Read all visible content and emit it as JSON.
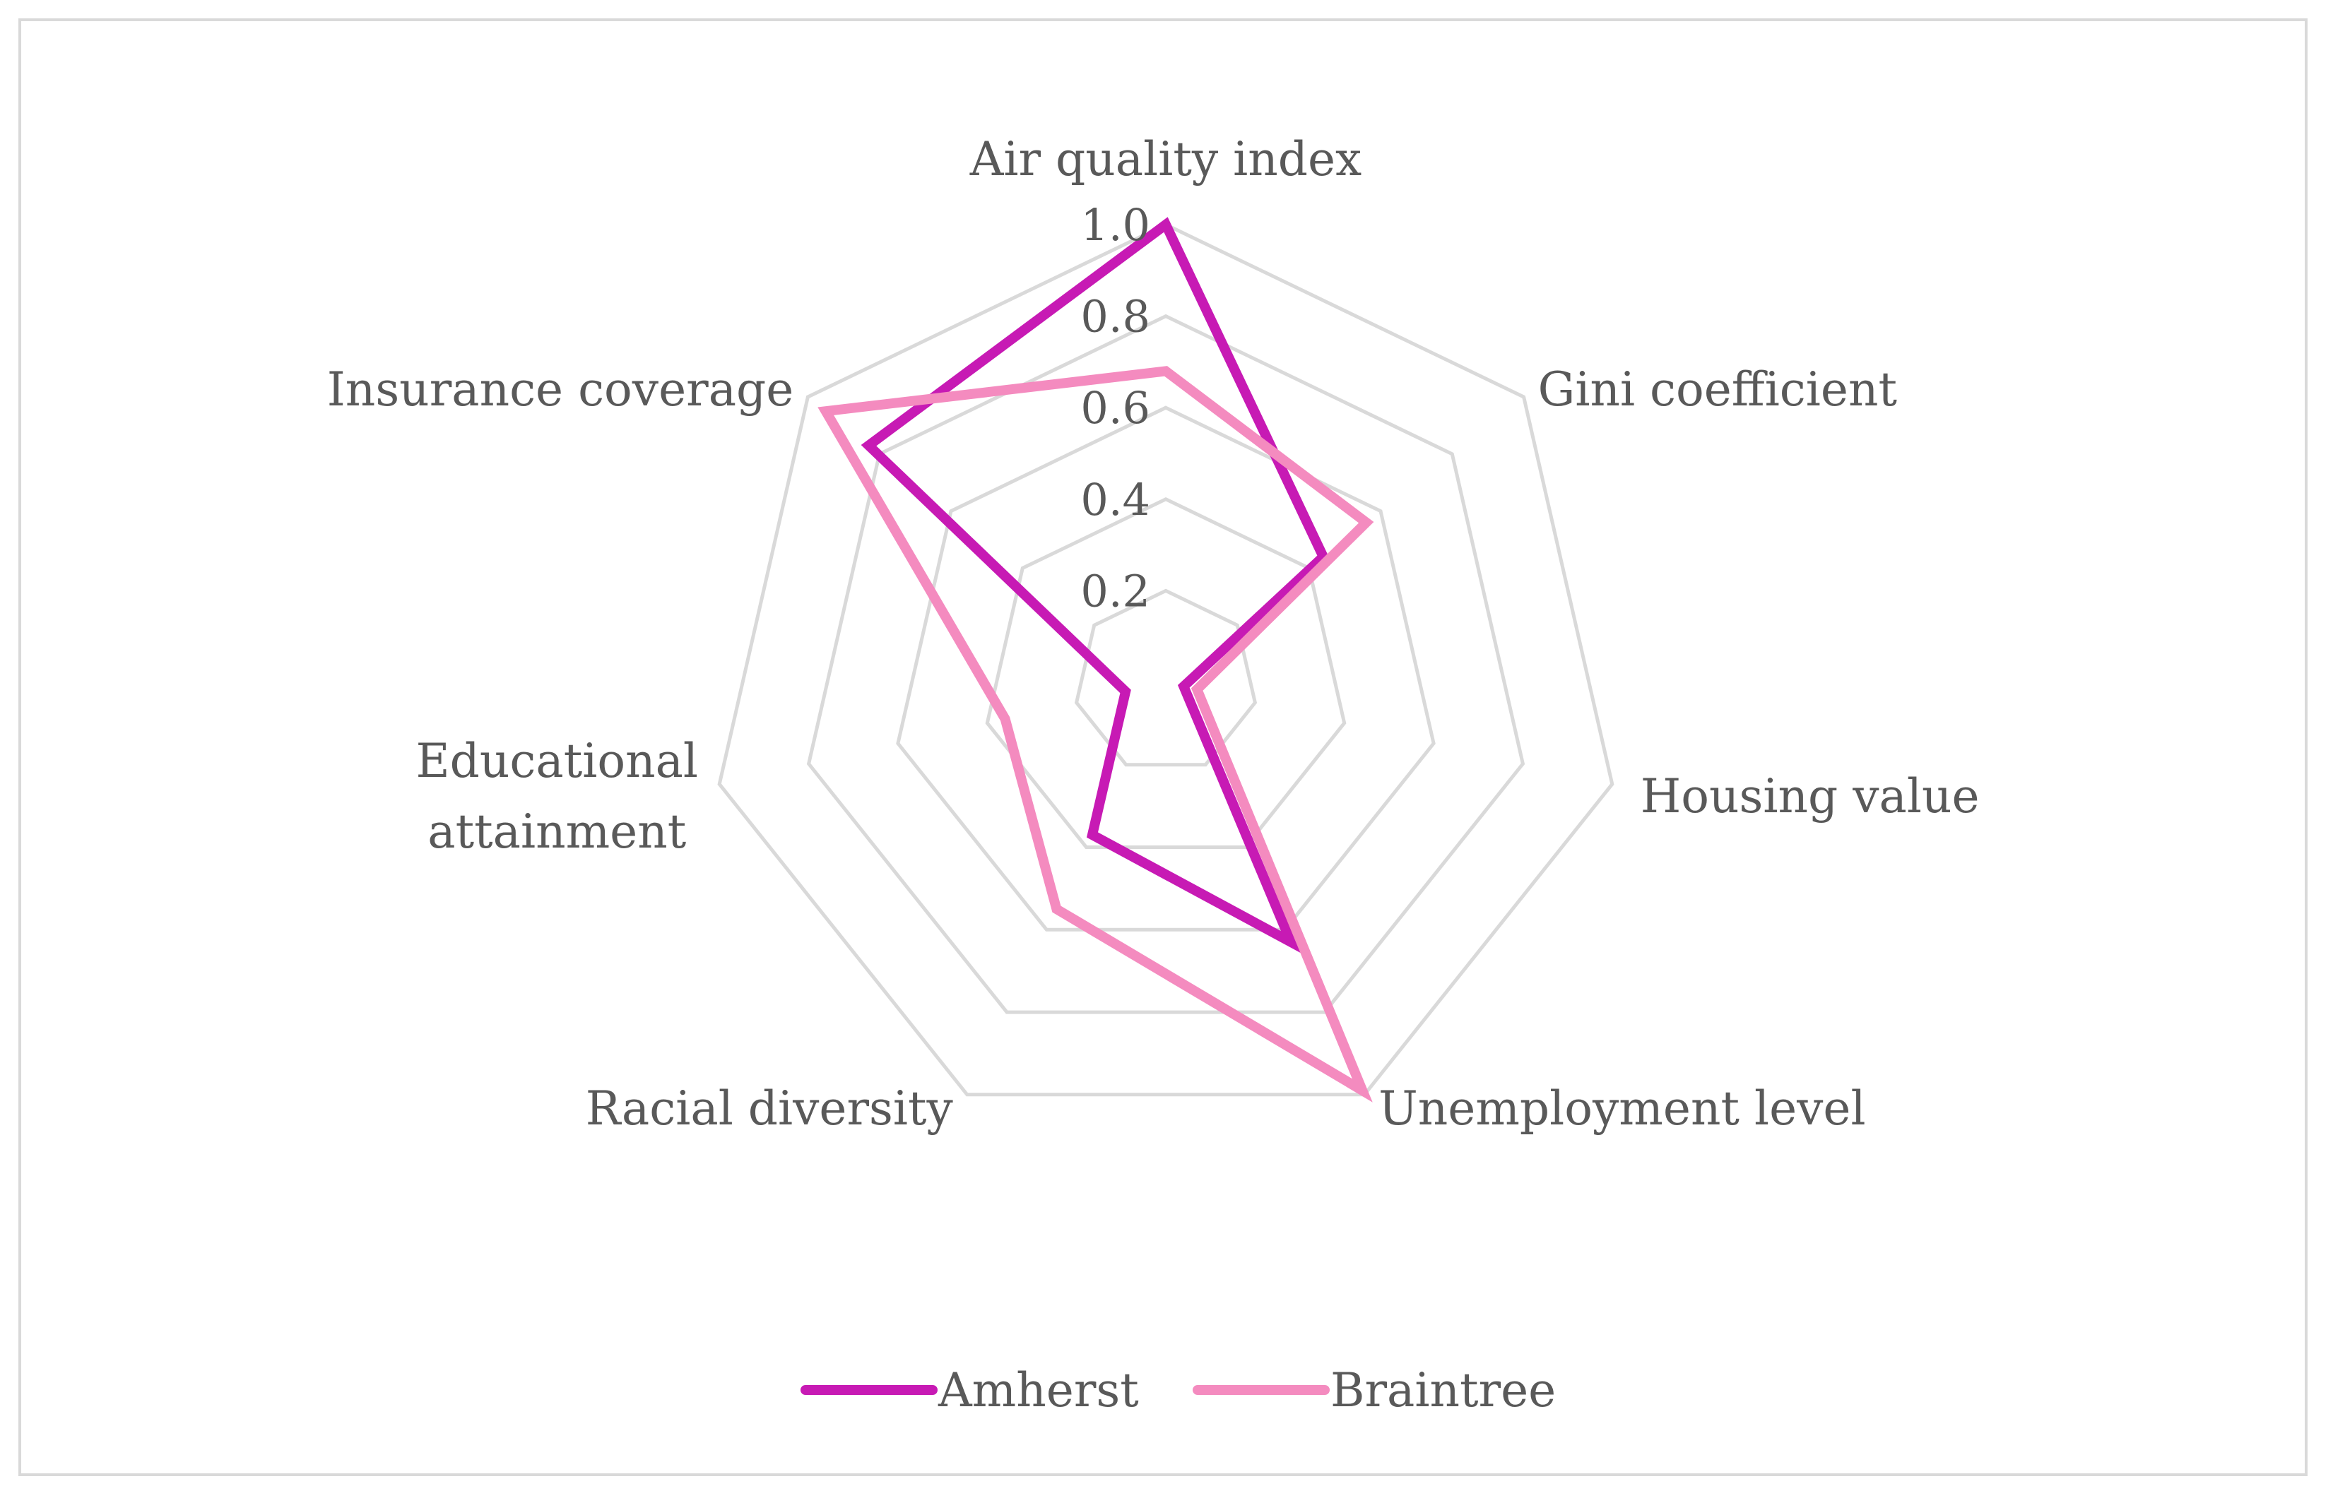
{
  "chart_data": {
    "type": "radar",
    "categories": [
      "Air quality index",
      "Gini coefficient",
      "Housing value",
      "Unemployment level",
      "Racial diversity",
      "Educational attainment",
      "Insurance coverage"
    ],
    "radial_ticks": [
      "0.2",
      "0.4",
      "0.6",
      "0.8",
      "1.0"
    ],
    "tick_values": [
      0.2,
      0.4,
      0.6,
      0.8,
      1.0
    ],
    "rlim": [
      0,
      1.0
    ],
    "grid": true,
    "legend_position": "bottom",
    "series": [
      {
        "name": "Amherst",
        "color": "#c71ab4",
        "values": [
          1.0,
          0.44,
          0.04,
          0.63,
          0.37,
          0.09,
          0.83
        ]
      },
      {
        "name": "Braintree",
        "color": "#f48bbf",
        "values": [
          0.68,
          0.56,
          0.07,
          0.99,
          0.55,
          0.36,
          0.95
        ]
      }
    ]
  }
}
